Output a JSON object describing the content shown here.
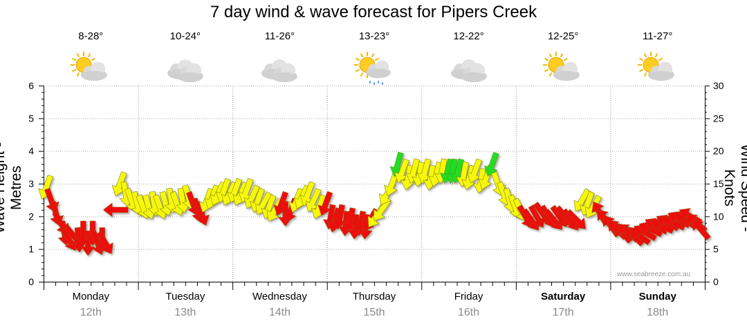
{
  "chart_data": {
    "type": "line",
    "title": "7 day wind & wave forecast for Pipers Creek",
    "ylabel_left": "Wave Height - Metres",
    "ylabel_right": "Wind Speed - Knots",
    "ylim_left": [
      0,
      6
    ],
    "ylim_right": [
      0,
      30
    ],
    "yticks_left": [
      "0",
      "1",
      "2",
      "3",
      "4",
      "5",
      "6"
    ],
    "yticks_right": [
      "0",
      "5",
      "10",
      "15",
      "20",
      "25",
      "30"
    ],
    "credit": "www.seabreeze.com.au",
    "days": [
      {
        "day": "Monday",
        "date": "12th",
        "temp": "8-28°",
        "icon": "sun-cloud-icon",
        "bold": false
      },
      {
        "day": "Tuesday",
        "date": "13th",
        "temp": "10-24°",
        "icon": "cloud-icon",
        "bold": false
      },
      {
        "day": "Wednesday",
        "date": "14th",
        "temp": "11-26°",
        "icon": "cloud-icon",
        "bold": false
      },
      {
        "day": "Thursday",
        "date": "15th",
        "temp": "13-23°",
        "icon": "sun-rain-icon",
        "bold": false
      },
      {
        "day": "Friday",
        "date": "16th",
        "temp": "12-22°",
        "icon": "cloud-icon",
        "bold": false
      },
      {
        "day": "Saturday",
        "date": "17th",
        "temp": "12-25°",
        "icon": "sun-cloud-icon",
        "bold": true
      },
      {
        "day": "Sunday",
        "date": "18th",
        "temp": "11-27°",
        "icon": "sun-cloud-icon",
        "bold": true
      }
    ],
    "colors": {
      "red": "#ee1111",
      "yellow": "#f7f70c",
      "green": "#22dd22"
    },
    "x_unit": "day (Monday 00:00 = 0)",
    "series": [
      {
        "name": "Wind Speed - Knots",
        "points": [
          [
            0.03,
            14.5,
            200,
            "yellow"
          ],
          [
            0.08,
            12.5,
            160,
            "red"
          ],
          [
            0.13,
            10.5,
            165,
            "red"
          ],
          [
            0.18,
            9,
            150,
            "red"
          ],
          [
            0.22,
            7.5,
            170,
            "red"
          ],
          [
            0.27,
            6.5,
            150,
            "red"
          ],
          [
            0.32,
            7,
            140,
            "red"
          ],
          [
            0.37,
            6.5,
            175,
            "red"
          ],
          [
            0.42,
            7.5,
            180,
            "red"
          ],
          [
            0.47,
            6,
            180,
            "red"
          ],
          [
            0.52,
            7.5,
            180,
            "red"
          ],
          [
            0.57,
            6,
            160,
            "red"
          ],
          [
            0.62,
            6.5,
            180,
            "red"
          ],
          [
            0.65,
            6,
            150,
            "red"
          ],
          [
            0.77,
            11,
            270,
            "red"
          ],
          [
            0.81,
            15,
            200,
            "yellow"
          ],
          [
            0.87,
            13.5,
            170,
            "yellow"
          ],
          [
            0.93,
            12.5,
            160,
            "yellow"
          ],
          [
            0.99,
            12,
            165,
            "yellow"
          ],
          [
            1.05,
            11.5,
            160,
            "yellow"
          ],
          [
            1.11,
            11.5,
            165,
            "yellow"
          ],
          [
            1.17,
            12,
            170,
            "yellow"
          ],
          [
            1.23,
            11.5,
            160,
            "yellow"
          ],
          [
            1.29,
            12,
            165,
            "yellow"
          ],
          [
            1.35,
            12.5,
            170,
            "yellow"
          ],
          [
            1.41,
            12,
            160,
            "yellow"
          ],
          [
            1.47,
            12.5,
            170,
            "yellow"
          ],
          [
            1.53,
            13,
            165,
            "yellow"
          ],
          [
            1.58,
            12,
            160,
            "red"
          ],
          [
            1.63,
            11,
            165,
            "red"
          ],
          [
            1.67,
            10.5,
            160,
            "red"
          ],
          [
            1.73,
            12.5,
            200,
            "yellow"
          ],
          [
            1.79,
            13,
            200,
            "yellow"
          ],
          [
            1.85,
            13.5,
            205,
            "yellow"
          ],
          [
            1.91,
            14,
            200,
            "yellow"
          ],
          [
            1.97,
            13.5,
            205,
            "yellow"
          ],
          [
            2.03,
            14,
            200,
            "yellow"
          ],
          [
            2.09,
            13.5,
            205,
            "yellow"
          ],
          [
            2.15,
            14,
            200,
            "yellow"
          ],
          [
            2.21,
            13,
            205,
            "yellow"
          ],
          [
            2.27,
            12.5,
            200,
            "yellow"
          ],
          [
            2.33,
            12,
            210,
            "yellow"
          ],
          [
            2.39,
            11.5,
            200,
            "yellow"
          ],
          [
            2.45,
            11,
            210,
            "yellow"
          ],
          [
            2.52,
            12,
            200,
            "red"
          ],
          [
            2.56,
            10.5,
            180,
            "red"
          ],
          [
            2.62,
            11,
            200,
            "red"
          ],
          [
            2.68,
            12.5,
            200,
            "yellow"
          ],
          [
            2.74,
            13,
            205,
            "yellow"
          ],
          [
            2.8,
            13.5,
            200,
            "yellow"
          ],
          [
            2.86,
            12.5,
            205,
            "yellow"
          ],
          [
            2.92,
            11.5,
            200,
            "yellow"
          ],
          [
            2.99,
            12,
            200,
            "red"
          ],
          [
            3.04,
            10,
            190,
            "red"
          ],
          [
            3.09,
            9.5,
            195,
            "red"
          ],
          [
            3.14,
            10,
            190,
            "red"
          ],
          [
            3.2,
            9,
            185,
            "red"
          ],
          [
            3.25,
            9.5,
            190,
            "red"
          ],
          [
            3.3,
            8.5,
            185,
            "red"
          ],
          [
            3.36,
            9,
            190,
            "red"
          ],
          [
            3.41,
            8.5,
            185,
            "red"
          ],
          [
            3.46,
            9.5,
            210,
            "red"
          ],
          [
            3.52,
            10,
            215,
            "yellow"
          ],
          [
            3.58,
            11,
            215,
            "yellow"
          ],
          [
            3.64,
            13.5,
            210,
            "yellow"
          ],
          [
            3.69,
            15,
            200,
            "yellow"
          ],
          [
            3.75,
            18,
            195,
            "green"
          ],
          [
            3.8,
            17,
            200,
            "yellow"
          ],
          [
            3.86,
            16,
            190,
            "yellow"
          ],
          [
            3.92,
            17,
            195,
            "yellow"
          ],
          [
            3.98,
            16.5,
            190,
            "yellow"
          ],
          [
            4.04,
            17,
            195,
            "yellow"
          ],
          [
            4.1,
            16,
            190,
            "yellow"
          ],
          [
            4.16,
            16.5,
            195,
            "yellow"
          ],
          [
            4.22,
            17,
            190,
            "yellow"
          ],
          [
            4.28,
            17,
            195,
            "green"
          ],
          [
            4.33,
            17,
            190,
            "green"
          ],
          [
            4.39,
            17,
            195,
            "green"
          ],
          [
            4.45,
            16.5,
            190,
            "yellow"
          ],
          [
            4.51,
            16,
            195,
            "yellow"
          ],
          [
            4.57,
            17,
            200,
            "yellow"
          ],
          [
            4.63,
            15.5,
            190,
            "yellow"
          ],
          [
            4.69,
            16,
            200,
            "yellow"
          ],
          [
            4.75,
            18,
            200,
            "green"
          ],
          [
            4.81,
            15,
            160,
            "yellow"
          ],
          [
            4.87,
            13.5,
            160,
            "yellow"
          ],
          [
            4.93,
            12.5,
            165,
            "yellow"
          ],
          [
            4.99,
            11.5,
            160,
            "yellow"
          ],
          [
            5.05,
            11,
            155,
            "yellow"
          ],
          [
            5.1,
            10,
            150,
            "red"
          ],
          [
            5.16,
            9.5,
            145,
            "red"
          ],
          [
            5.22,
            10,
            150,
            "red"
          ],
          [
            5.28,
            10.5,
            145,
            "red"
          ],
          [
            5.34,
            10,
            150,
            "red"
          ],
          [
            5.4,
            9.5,
            140,
            "red"
          ],
          [
            5.46,
            10,
            145,
            "red"
          ],
          [
            5.52,
            10,
            140,
            "red"
          ],
          [
            5.58,
            9.5,
            145,
            "red"
          ],
          [
            5.64,
            9.5,
            135,
            "red"
          ],
          [
            5.7,
            12.5,
            210,
            "yellow"
          ],
          [
            5.76,
            12,
            200,
            "yellow"
          ],
          [
            5.82,
            11.5,
            210,
            "yellow"
          ],
          [
            5.89,
            10.5,
            330,
            "red"
          ],
          [
            5.95,
            9.5,
            320,
            "red"
          ],
          [
            6.01,
            8.5,
            325,
            "red"
          ],
          [
            6.07,
            8,
            315,
            "red"
          ],
          [
            6.13,
            7.5,
            320,
            "red"
          ],
          [
            6.19,
            7.5,
            310,
            "red"
          ],
          [
            6.25,
            7,
            315,
            "red"
          ],
          [
            6.31,
            7,
            305,
            "red"
          ],
          [
            6.37,
            7.5,
            300,
            "red"
          ],
          [
            6.43,
            8,
            295,
            "red"
          ],
          [
            6.49,
            8.5,
            300,
            "red"
          ],
          [
            6.55,
            8.5,
            295,
            "red"
          ],
          [
            6.61,
            9,
            300,
            "red"
          ],
          [
            6.67,
            9,
            295,
            "red"
          ],
          [
            6.73,
            9.5,
            300,
            "red"
          ],
          [
            6.79,
            9.5,
            305,
            "red"
          ],
          [
            6.85,
            10,
            300,
            "red"
          ],
          [
            6.91,
            9,
            310,
            "red"
          ],
          [
            6.96,
            8,
            320,
            "red"
          ]
        ]
      }
    ]
  }
}
